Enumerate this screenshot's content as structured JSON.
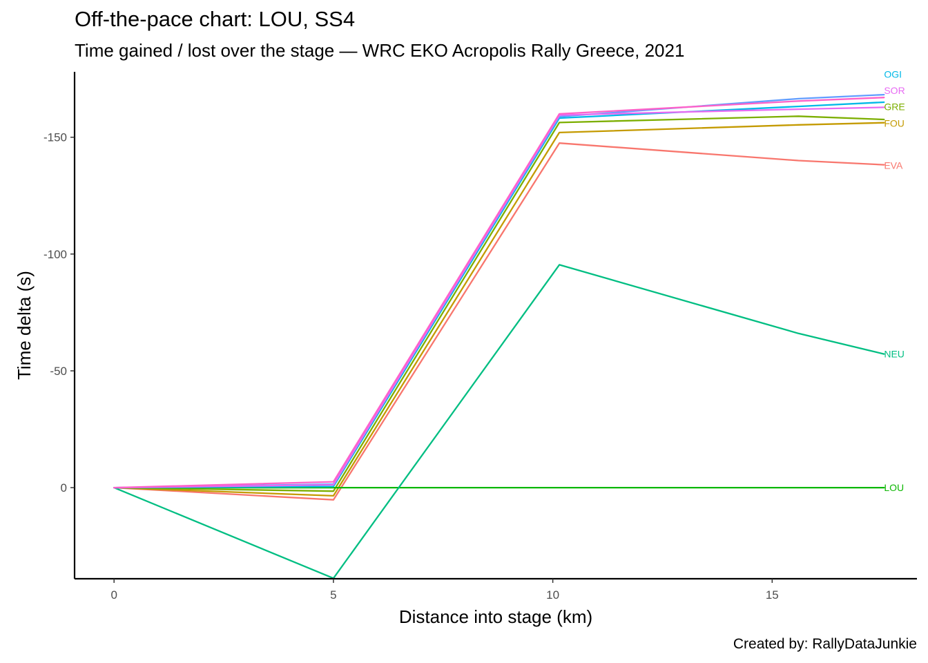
{
  "chart_data": {
    "type": "line",
    "title": "Off-the-pace chart: LOU, SS4",
    "subtitle": "Time gained / lost over the stage — WRC EKO Acropolis Rally Greece, 2021",
    "xlabel": "Distance into stage (km)",
    "ylabel": "Time delta (s)",
    "caption": "Created by: RallyDataJunkie",
    "xlim": [
      -0.9,
      18.3
    ],
    "ylim": [
      39,
      -178
    ],
    "y_axis_reversed": true,
    "x_ticks": [
      0,
      5,
      10,
      15
    ],
    "y_ticks": [
      -150,
      -100,
      -50,
      0
    ],
    "grid": false,
    "legend": "none (direct end labels)",
    "series": [
      {
        "name": "EVA",
        "color": "#F8766D",
        "x": [
          0,
          5,
          10.15,
          15.6,
          17.55
        ],
        "y": [
          0,
          5.2,
          -147.5,
          -140.0,
          -138.2
        ]
      },
      {
        "name": "FOU",
        "color": "#C49A00",
        "x": [
          0,
          5,
          10.15,
          15.6,
          17.55
        ],
        "y": [
          0,
          3.5,
          -152.0,
          -155.3,
          -156.2
        ]
      },
      {
        "name": "GRE",
        "color": "#7CAE00",
        "x": [
          0,
          5,
          10.15,
          15.6,
          17.55
        ],
        "y": [
          0,
          1.5,
          -156.3,
          -159.0,
          -157.6
        ]
      },
      {
        "name": "LOU",
        "color": "#0CB702",
        "x": [
          0,
          5,
          10.15,
          15.6,
          17.55
        ],
        "y": [
          0,
          0,
          0,
          0,
          0
        ]
      },
      {
        "name": "NEU",
        "color": "#00BE82",
        "x": [
          0,
          5,
          10.15,
          15.6,
          17.55
        ],
        "y": [
          0,
          38.8,
          -95.4,
          -66.0,
          -57.2
        ]
      },
      {
        "name": "OGI",
        "color": "#00B8E7",
        "x": [
          0,
          5,
          10.15,
          15.6,
          17.55
        ],
        "y": [
          0,
          -0.5,
          -158.2,
          -163.2,
          -165.0
        ]
      },
      {
        "name": "",
        "color": "#619CFF",
        "x": [
          0,
          5,
          10.15,
          15.6,
          17.55
        ],
        "y": [
          0,
          -1.5,
          -158.8,
          -166.5,
          -168.2
        ]
      },
      {
        "name": "SOR",
        "color": "#E76BF3",
        "x": [
          0,
          5,
          10.15,
          15.6,
          17.55
        ],
        "y": [
          0,
          -1.2,
          -159.5,
          -162.0,
          -162.8
        ]
      },
      {
        "name": "",
        "color": "#FF61C9",
        "x": [
          0,
          5,
          10.15,
          15.6,
          17.55
        ],
        "y": [
          0,
          -2.5,
          -160.0,
          -165.5,
          -167.0
        ]
      }
    ],
    "end_labels": [
      {
        "text": "OGI",
        "series": "OGI",
        "color": "#00B8E7",
        "y": -177
      },
      {
        "text": "SOR",
        "series": "SOR",
        "color": "#E76BF3",
        "y": -170
      },
      {
        "text": "GRE",
        "series": "GRE",
        "color": "#7CAE00",
        "y": -163
      },
      {
        "text": "FOU",
        "series": "FOU",
        "color": "#C49A00",
        "y": -156
      },
      {
        "text": "EVA",
        "series": "EVA",
        "color": "#F8766D",
        "y": -138
      },
      {
        "text": "NEU",
        "series": "NEU",
        "color": "#00BE82",
        "y": -57.2
      },
      {
        "text": "LOU",
        "series": "LOU",
        "color": "#0CB702",
        "y": 0
      }
    ]
  }
}
